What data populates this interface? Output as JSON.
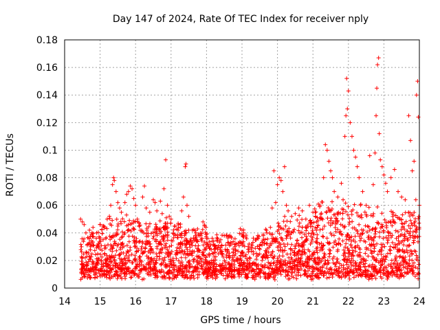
{
  "chart_data": {
    "type": "scatter",
    "title": "Day 147 of 2024, Rate Of TEC Index for receiver nply",
    "xlabel": "GPS time / hours",
    "ylabel": "ROTI / TECUs",
    "xlim": [
      14,
      24
    ],
    "ylim": [
      0,
      0.18
    ],
    "x_ticks": [
      14,
      15,
      16,
      17,
      18,
      19,
      20,
      21,
      22,
      23,
      24
    ],
    "x_tick_labels": [
      "14",
      "15",
      "16",
      "17",
      "18",
      "19",
      "20",
      "21",
      "22",
      "23",
      "24"
    ],
    "y_ticks": [
      0,
      0.02,
      0.04,
      0.06,
      0.08,
      0.1,
      0.12,
      0.14,
      0.16,
      0.18
    ],
    "y_tick_labels": [
      "0",
      "0.02",
      "0.04",
      "0.06",
      "0.08",
      "0.1",
      "0.12",
      "0.14",
      "0.16",
      "0.18"
    ],
    "grid": true,
    "marker": "+",
    "color": "#ff0000",
    "series": [
      {
        "name": "ROTI",
        "points": [
          [
            14.45,
            0.05
          ],
          [
            14.5,
            0.048
          ],
          [
            14.55,
            0.046
          ],
          [
            14.6,
            0.04
          ],
          [
            14.7,
            0.042
          ],
          [
            14.8,
            0.044
          ],
          [
            14.9,
            0.04
          ],
          [
            15.0,
            0.046
          ],
          [
            15.1,
            0.045
          ],
          [
            15.2,
            0.05
          ],
          [
            15.3,
            0.06
          ],
          [
            15.35,
            0.075
          ],
          [
            15.38,
            0.08
          ],
          [
            15.4,
            0.078
          ],
          [
            15.45,
            0.07
          ],
          [
            15.5,
            0.062
          ],
          [
            15.55,
            0.058
          ],
          [
            15.6,
            0.055
          ],
          [
            15.7,
            0.062
          ],
          [
            15.75,
            0.068
          ],
          [
            15.8,
            0.07
          ],
          [
            15.85,
            0.074
          ],
          [
            15.9,
            0.072
          ],
          [
            15.95,
            0.065
          ],
          [
            16.0,
            0.06
          ],
          [
            16.05,
            0.05
          ],
          [
            16.1,
            0.045
          ],
          [
            16.2,
            0.066
          ],
          [
            16.25,
            0.074
          ],
          [
            16.3,
            0.058
          ],
          [
            16.4,
            0.055
          ],
          [
            16.5,
            0.064
          ],
          [
            16.55,
            0.062
          ],
          [
            16.6,
            0.056
          ],
          [
            16.7,
            0.063
          ],
          [
            16.75,
            0.054
          ],
          [
            16.8,
            0.072
          ],
          [
            16.85,
            0.093
          ],
          [
            16.9,
            0.06
          ],
          [
            16.95,
            0.052
          ],
          [
            17.0,
            0.05
          ],
          [
            17.1,
            0.045
          ],
          [
            17.2,
            0.042
          ],
          [
            17.3,
            0.056
          ],
          [
            17.35,
            0.066
          ],
          [
            17.4,
            0.088
          ],
          [
            17.42,
            0.09
          ],
          [
            17.45,
            0.06
          ],
          [
            17.5,
            0.052
          ],
          [
            17.6,
            0.042
          ],
          [
            17.7,
            0.04
          ],
          [
            17.8,
            0.038
          ],
          [
            17.9,
            0.048
          ],
          [
            18.0,
            0.036
          ],
          [
            18.2,
            0.034
          ],
          [
            18.4,
            0.035
          ],
          [
            18.5,
            0.038
          ],
          [
            18.6,
            0.033
          ],
          [
            18.8,
            0.03
          ],
          [
            18.95,
            0.043
          ],
          [
            19.0,
            0.042
          ],
          [
            19.05,
            0.04
          ],
          [
            19.2,
            0.032
          ],
          [
            19.4,
            0.035
          ],
          [
            19.6,
            0.038
          ],
          [
            19.7,
            0.04
          ],
          [
            19.8,
            0.044
          ],
          [
            19.85,
            0.058
          ],
          [
            19.9,
            0.085
          ],
          [
            19.95,
            0.062
          ],
          [
            20.0,
            0.075
          ],
          [
            20.05,
            0.08
          ],
          [
            20.1,
            0.078
          ],
          [
            20.15,
            0.07
          ],
          [
            20.2,
            0.088
          ],
          [
            20.25,
            0.06
          ],
          [
            20.3,
            0.056
          ],
          [
            20.4,
            0.052
          ],
          [
            20.5,
            0.054
          ],
          [
            20.6,
            0.058
          ],
          [
            20.7,
            0.056
          ],
          [
            20.8,
            0.05
          ],
          [
            20.9,
            0.06
          ],
          [
            21.0,
            0.055
          ],
          [
            21.1,
            0.048
          ],
          [
            21.2,
            0.06
          ],
          [
            21.3,
            0.08
          ],
          [
            21.35,
            0.104
          ],
          [
            21.4,
            0.1
          ],
          [
            21.45,
            0.092
          ],
          [
            21.5,
            0.085
          ],
          [
            21.55,
            0.08
          ],
          [
            21.6,
            0.07
          ],
          [
            21.7,
            0.066
          ],
          [
            21.8,
            0.076
          ],
          [
            21.85,
            0.064
          ],
          [
            21.9,
            0.11
          ],
          [
            21.93,
            0.125
          ],
          [
            21.95,
            0.152
          ],
          [
            21.97,
            0.13
          ],
          [
            22.0,
            0.143
          ],
          [
            22.05,
            0.12
          ],
          [
            22.1,
            0.11
          ],
          [
            22.15,
            0.1
          ],
          [
            22.2,
            0.095
          ],
          [
            22.25,
            0.088
          ],
          [
            22.3,
            0.08
          ],
          [
            22.4,
            0.07
          ],
          [
            22.5,
            0.06
          ],
          [
            22.6,
            0.096
          ],
          [
            22.7,
            0.075
          ],
          [
            22.75,
            0.098
          ],
          [
            22.78,
            0.125
          ],
          [
            22.8,
            0.145
          ],
          [
            22.82,
            0.162
          ],
          [
            22.85,
            0.167
          ],
          [
            22.87,
            0.112
          ],
          [
            22.9,
            0.093
          ],
          [
            22.95,
            0.088
          ],
          [
            23.0,
            0.082
          ],
          [
            23.05,
            0.076
          ],
          [
            23.1,
            0.07
          ],
          [
            23.2,
            0.08
          ],
          [
            23.3,
            0.086
          ],
          [
            23.4,
            0.07
          ],
          [
            23.5,
            0.066
          ],
          [
            23.6,
            0.064
          ],
          [
            23.7,
            0.125
          ],
          [
            23.75,
            0.107
          ],
          [
            23.8,
            0.085
          ],
          [
            23.85,
            0.092
          ],
          [
            23.9,
            0.064
          ],
          [
            23.92,
            0.14
          ],
          [
            23.95,
            0.15
          ],
          [
            23.97,
            0.124
          ],
          [
            24.0,
            0.06
          ]
        ]
      }
    ]
  }
}
